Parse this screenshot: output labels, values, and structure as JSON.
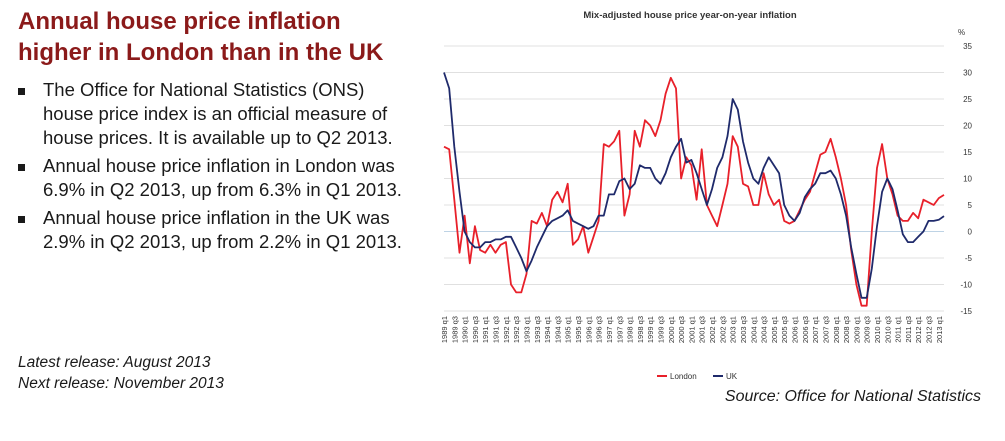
{
  "headline": "Annual house price inflation higher in London than in the UK",
  "bullets": [
    "The Office for National Statistics (ONS) house price index is an official measure of house prices. It is available up to Q2 2013.",
    "Annual house price inflation in London was 6.9% in Q2 2013, up from 6.3% in Q1 2013.",
    "Annual house price inflation in the UK was 2.9% in Q2 2013, up from 2.2% in Q1 2013."
  ],
  "release": {
    "latest": "Latest release: August 2013",
    "next": "Next release: November 2013"
  },
  "source": "Source: Office for National Statistics",
  "colors": {
    "headline": "#8b1a1a",
    "london": "#e8202a",
    "uk": "#1f2a6b",
    "grid": "#d6d6d6",
    "zero": "#a9c4dd"
  },
  "chart_data": {
    "type": "line",
    "title": "Mix-adjusted house price year-on-year inflation",
    "unit_label": "%",
    "ylim": [
      -15,
      35
    ],
    "yticks": [
      -15,
      -10,
      -5,
      0,
      5,
      10,
      15,
      20,
      25,
      30,
      35
    ],
    "grid": true,
    "legend_position": "bottom-center",
    "x": [
      "1989 q1",
      "1989 q2",
      "1989 q3",
      "1989 q4",
      "1990 q1",
      "1990 q2",
      "1990 q3",
      "1990 q4",
      "1991 q1",
      "1991 q2",
      "1991 q3",
      "1991 q4",
      "1992 q1",
      "1992 q2",
      "1992 q3",
      "1992 q4",
      "1993 q1",
      "1993 q2",
      "1993 q3",
      "1993 q4",
      "1994 q1",
      "1994 q2",
      "1994 q3",
      "1994 q4",
      "1995 q1",
      "1995 q2",
      "1995 q3",
      "1995 q4",
      "1996 q1",
      "1996 q2",
      "1996 q3",
      "1996 q4",
      "1997 q1",
      "1997 q2",
      "1997 q3",
      "1997 q4",
      "1998 q1",
      "1998 q2",
      "1998 q3",
      "1998 q4",
      "1999 q1",
      "1999 q2",
      "1999 q3",
      "1999 q4",
      "2000 q1",
      "2000 q2",
      "2000 q3",
      "2000 q4",
      "2001 q1",
      "2001 q2",
      "2001 q3",
      "2001 q4",
      "2002 q1",
      "2002 q2",
      "2002 q3",
      "2002 q4",
      "2003 q1",
      "2003 q2",
      "2003 q3",
      "2003 q4",
      "2004 q1",
      "2004 q2",
      "2004 q3",
      "2004 q4",
      "2005 q1",
      "2005 q2",
      "2005 q3",
      "2005 q4",
      "2006 q1",
      "2006 q2",
      "2006 q3",
      "2006 q4",
      "2007 q1",
      "2007 q2",
      "2007 q3",
      "2007 q4",
      "2008 q1",
      "2008 q2",
      "2008 q3",
      "2008 q4",
      "2009 q1",
      "2009 q2",
      "2009 q3",
      "2009 q4",
      "2010 q1",
      "2010 q2",
      "2010 q3",
      "2010 q4",
      "2011 q1",
      "2011 q2",
      "2011 q3",
      "2011 q4",
      "2012 q1",
      "2012 q2",
      "2012 q3",
      "2012 q4",
      "2013 q1",
      "2013 q2"
    ],
    "x_tick_labels": [
      "1989 q1",
      "1989 q3",
      "1990 q1",
      "1990 q3",
      "1991 q1",
      "1991 q3",
      "1992 q1",
      "1992 q3",
      "1993 q1",
      "1993 q3",
      "1994 q1",
      "1994 q3",
      "1995 q1",
      "1995 q3",
      "1996 q1",
      "1996 q3",
      "1997 q1",
      "1997 q3",
      "1998 q1",
      "1998 q3",
      "1999 q1",
      "1999 q3",
      "2000 q1",
      "2000 q3",
      "2001 q1",
      "2001 q3",
      "2002 q1",
      "2002 q3",
      "2003 q1",
      "2003 q3",
      "2004 q1",
      "2004 q3",
      "2005 q1",
      "2005 q3",
      "2006 q1",
      "2006 q3",
      "2007 q1",
      "2007 q3",
      "2008 q1",
      "2008 q3",
      "2009 q1",
      "2009 q3",
      "2010 q1",
      "2010 q3",
      "2011 q1",
      "2011 q3",
      "2012 q1",
      "2012 q3",
      "2013 q1"
    ],
    "series": [
      {
        "name": "London",
        "color": "#e8202a",
        "values": [
          16,
          15.5,
          6,
          -4,
          3,
          -6,
          1,
          -3.5,
          -4,
          -2.5,
          -4,
          -2.5,
          -2,
          -10,
          -11.5,
          -11.5,
          -8,
          2,
          1.5,
          3.5,
          1,
          6,
          7.5,
          5.5,
          9,
          -2.5,
          -1.5,
          1,
          -4,
          -1,
          2,
          16.5,
          16,
          17,
          19,
          3,
          7,
          19,
          16,
          21,
          20,
          18,
          21,
          26,
          29,
          27,
          10,
          14,
          12.5,
          6,
          15.5,
          5,
          3,
          1,
          5,
          9,
          18,
          16,
          9,
          8.5,
          5,
          5,
          11,
          7,
          5,
          6,
          2,
          1.5,
          2,
          4,
          6,
          7.5,
          11,
          14.5,
          15,
          17.5,
          14,
          10,
          5,
          -3.5,
          -10,
          -14,
          -14,
          0,
          12,
          16.5,
          10,
          7,
          3,
          2,
          2,
          3.5,
          2.5,
          6,
          5.5,
          5,
          6.3,
          6.9
        ]
      },
      {
        "name": "UK",
        "color": "#1f2a6b",
        "values": [
          30,
          27,
          16,
          7.5,
          0,
          -2,
          -3,
          -3,
          -2,
          -2,
          -1.5,
          -1.5,
          -1,
          -1,
          -3,
          -5,
          -7.5,
          -5.5,
          -3,
          -1,
          1,
          2,
          2.5,
          3,
          4,
          2,
          1.5,
          1,
          0.5,
          1,
          3,
          3,
          7,
          7,
          9.5,
          10,
          8,
          9,
          12.5,
          12,
          12,
          10,
          9,
          11,
          14,
          16,
          17.5,
          13,
          13.5,
          11,
          8,
          5,
          8,
          12,
          14,
          18,
          25,
          23,
          17,
          13,
          10,
          9,
          12,
          14,
          12.5,
          11,
          5,
          3,
          2,
          3.5,
          6.5,
          8,
          9,
          11,
          11,
          11.5,
          10,
          7,
          3,
          -3,
          -8,
          -12.5,
          -12.5,
          -7,
          1,
          7.5,
          10,
          8,
          4,
          -0.5,
          -2,
          -2,
          -1,
          0,
          2,
          2,
          2.2,
          2.9
        ]
      }
    ]
  }
}
